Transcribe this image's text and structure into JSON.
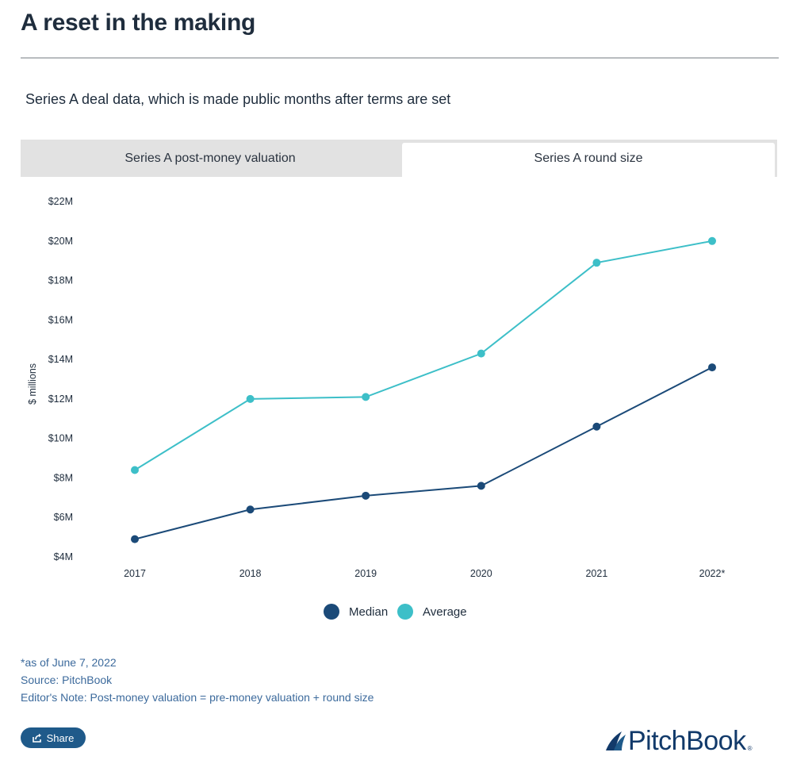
{
  "header": {
    "title": "A reset in the making",
    "subtitle": "Series A deal data, which is made public months after terms are set"
  },
  "tabs": [
    {
      "label": "Series A post-money valuation",
      "active": false
    },
    {
      "label": "Series A round size",
      "active": true
    }
  ],
  "colors": {
    "median": "#1b4a78",
    "average": "#3dbfc8",
    "notes": "#3c6a9c",
    "share_button": "#1f5a8a"
  },
  "chart_data": {
    "type": "line",
    "categories": [
      "2017",
      "2018",
      "2019",
      "2020",
      "2021",
      "2022*"
    ],
    "ylabel": "$ millions",
    "ylim": [
      4,
      22
    ],
    "yticks": [
      {
        "value": 4,
        "label": "$4M"
      },
      {
        "value": 6,
        "label": "$6M"
      },
      {
        "value": 8,
        "label": "$8M"
      },
      {
        "value": 10,
        "label": "$10M"
      },
      {
        "value": 12,
        "label": "$12M"
      },
      {
        "value": 14,
        "label": "$14M"
      },
      {
        "value": 16,
        "label": "$16M"
      },
      {
        "value": 18,
        "label": "$18M"
      },
      {
        "value": 20,
        "label": "$20M"
      },
      {
        "value": 22,
        "label": "$22M"
      }
    ],
    "grid": false,
    "legend_position": "bottom-center",
    "series": [
      {
        "name": "Median",
        "color": "#1b4a78",
        "values": [
          4.9,
          6.4,
          7.1,
          7.6,
          10.6,
          13.6
        ]
      },
      {
        "name": "Average",
        "color": "#3dbfc8",
        "values": [
          8.4,
          12.0,
          12.1,
          14.3,
          18.9,
          20.0
        ]
      }
    ]
  },
  "notes": [
    "*as of June 7, 2022",
    "Source: PitchBook",
    "Editor's Note: Post-money valuation = pre-money valuation + round size"
  ],
  "share": {
    "label": "Share",
    "icon": "share-icon"
  },
  "logo": {
    "text": "PitchBook",
    "mark": "®"
  }
}
